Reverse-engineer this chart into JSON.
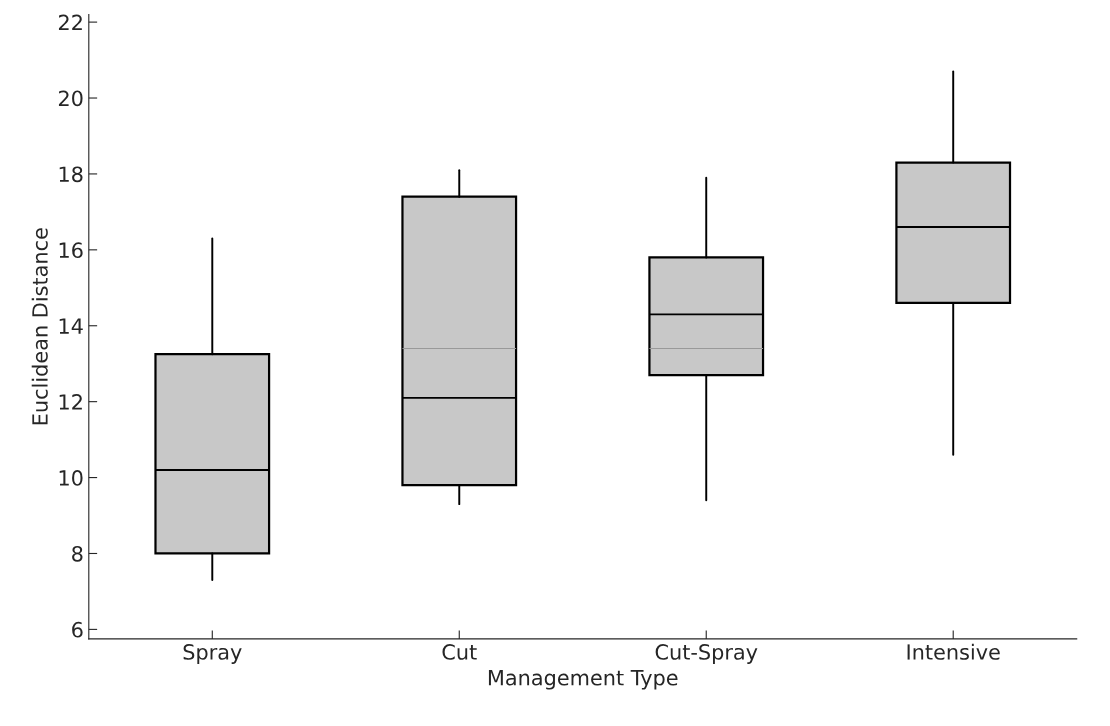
{
  "chart_data": {
    "type": "box",
    "xlabel": "Management Type",
    "ylabel": "Euclidean Distance",
    "categories": [
      "Spray",
      "Cut",
      "Cut-Spray",
      "Intensive"
    ],
    "boxes": [
      {
        "low": 7.3,
        "q1": 8.0,
        "median": 10.2,
        "q3": 13.25,
        "high": 16.3
      },
      {
        "low": 9.3,
        "q1": 9.8,
        "median": 12.1,
        "q3": 17.4,
        "high": 18.1,
        "mean": 13.4
      },
      {
        "low": 9.4,
        "q1": 12.7,
        "median": 14.3,
        "q3": 15.8,
        "high": 17.9,
        "mean": 13.4
      },
      {
        "low": 10.6,
        "q1": 14.6,
        "median": 16.6,
        "q3": 18.3,
        "high": 20.7
      }
    ],
    "color": "#c8c8c8",
    "ylim": [
      5.75,
      22.2
    ],
    "yticks": [
      6,
      8,
      10,
      12,
      14,
      16,
      18,
      20,
      22
    ],
    "grid": false
  }
}
